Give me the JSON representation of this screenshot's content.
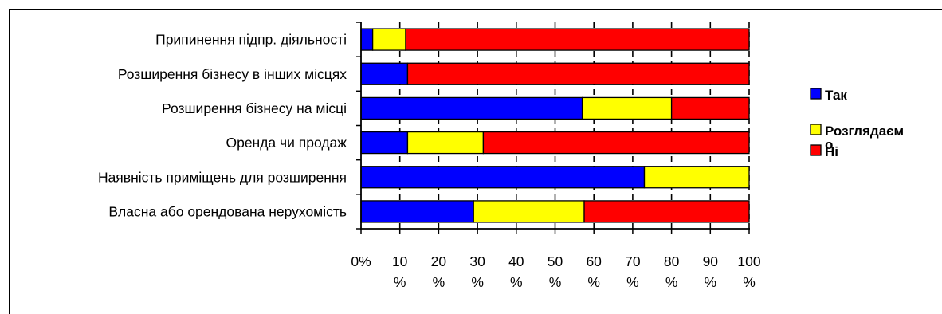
{
  "chart_data": {
    "type": "bar",
    "orientation": "horizontal",
    "stacked": "percent",
    "categories": [
      "Припинення підпр. діяльності",
      "Розширення бізнесу в інших місцях",
      "Розширення бізнесу на місці",
      "Оренда чи продаж",
      "Наявність приміщень для розширення",
      "Власна або орендована нерухомість"
    ],
    "series": [
      {
        "name": "Так",
        "color": "#0000ff",
        "values": [
          3,
          12,
          57,
          12,
          73,
          29
        ]
      },
      {
        "name": "Розглядаємо",
        "color": "#ffff00",
        "values": [
          8.5,
          0,
          23,
          19.5,
          27,
          28.5
        ]
      },
      {
        "name": "Ні",
        "color": "#ff0000",
        "values": [
          88.5,
          88,
          20,
          68.5,
          0,
          42.5
        ]
      }
    ],
    "x_ticks": [
      "0%",
      "10 %",
      "20 %",
      "30 %",
      "40 %",
      "50 %",
      "60 %",
      "70 %",
      "80 %",
      "90 %",
      "100 %"
    ],
    "xlim": [
      0,
      100
    ],
    "grid": true,
    "legend_position": "right"
  }
}
